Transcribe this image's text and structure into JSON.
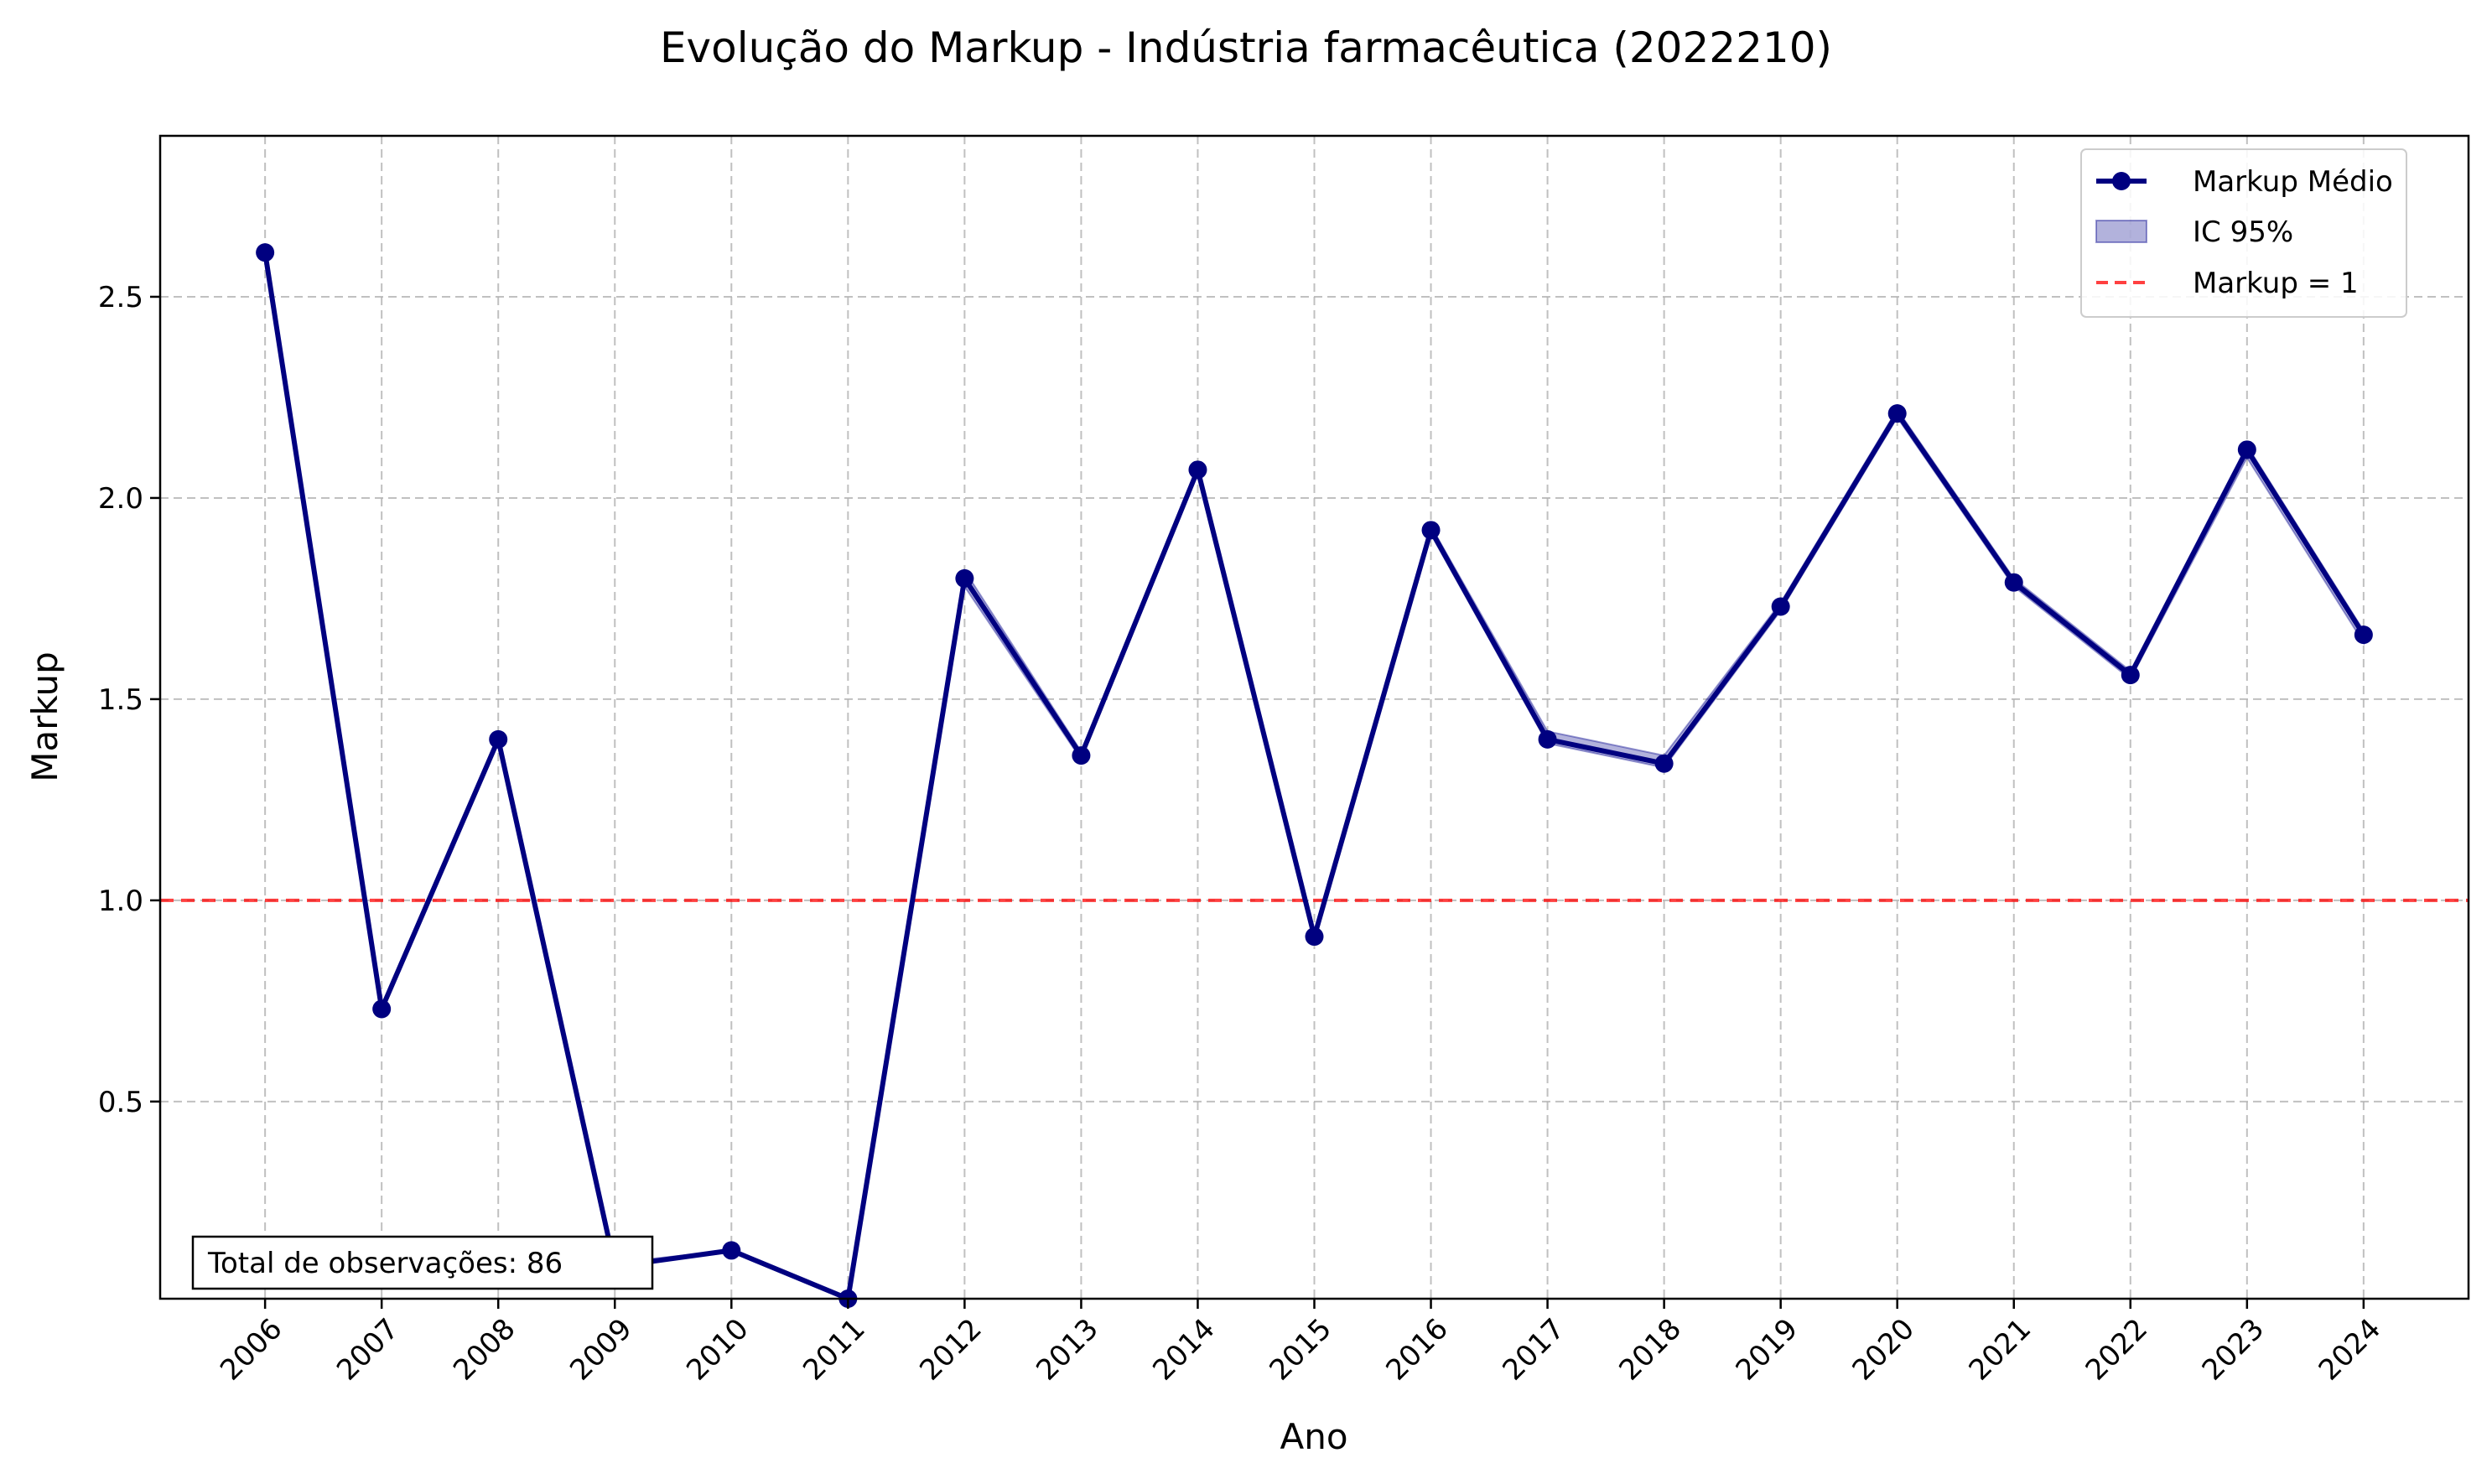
{
  "chart_data": {
    "type": "line",
    "title": "Evolução do Markup - Indústria farmacêutica (2022210)",
    "xlabel": "Ano",
    "ylabel": "Markup",
    "x": [
      2006,
      2007,
      2008,
      2009,
      2010,
      2011,
      2012,
      2013,
      2014,
      2015,
      2016,
      2017,
      2018,
      2019,
      2020,
      2021,
      2022,
      2023,
      2024
    ],
    "x_tick_labels": [
      "2006",
      "2007",
      "2008",
      "2009",
      "2010",
      "2011",
      "2012",
      "2013",
      "2014",
      "2015",
      "2016",
      "2017",
      "2018",
      "2019",
      "2020",
      "2021",
      "2022",
      "2023",
      "2024"
    ],
    "y_ticks": [
      0.5,
      1.0,
      1.5,
      2.0,
      2.5
    ],
    "y_tick_labels": [
      "0.5",
      "1.0",
      "1.5",
      "2.0",
      "2.5"
    ],
    "ylim": [
      0.01,
      2.9
    ],
    "xlim": [
      2005.1,
      2024.9
    ],
    "grid": true,
    "legend_position": "top-right",
    "series": [
      {
        "name": "Markup Médio",
        "color": "#000080",
        "values": [
          2.61,
          0.73,
          1.4,
          0.09,
          0.13,
          0.01,
          1.8,
          1.36,
          2.07,
          0.91,
          1.92,
          1.4,
          1.34,
          1.73,
          2.21,
          1.79,
          1.56,
          2.12,
          1.66
        ]
      }
    ],
    "confidence_band": {
      "name": "IC 95%",
      "color": "#00008b",
      "lower": [
        2.61,
        0.73,
        1.4,
        0.09,
        0.13,
        0.01,
        1.78,
        1.35,
        2.06,
        0.91,
        1.91,
        1.39,
        1.33,
        1.72,
        2.2,
        1.78,
        1.55,
        2.1,
        1.64
      ],
      "upper": [
        2.61,
        0.73,
        1.4,
        0.1,
        0.13,
        0.01,
        1.82,
        1.37,
        2.08,
        0.91,
        1.93,
        1.42,
        1.36,
        1.74,
        2.22,
        1.8,
        1.57,
        2.13,
        1.67
      ]
    },
    "reference_line": {
      "name": "Markup = 1",
      "value": 1.0,
      "color": "#ff0000"
    },
    "annotation": "Total de observações: 86"
  }
}
